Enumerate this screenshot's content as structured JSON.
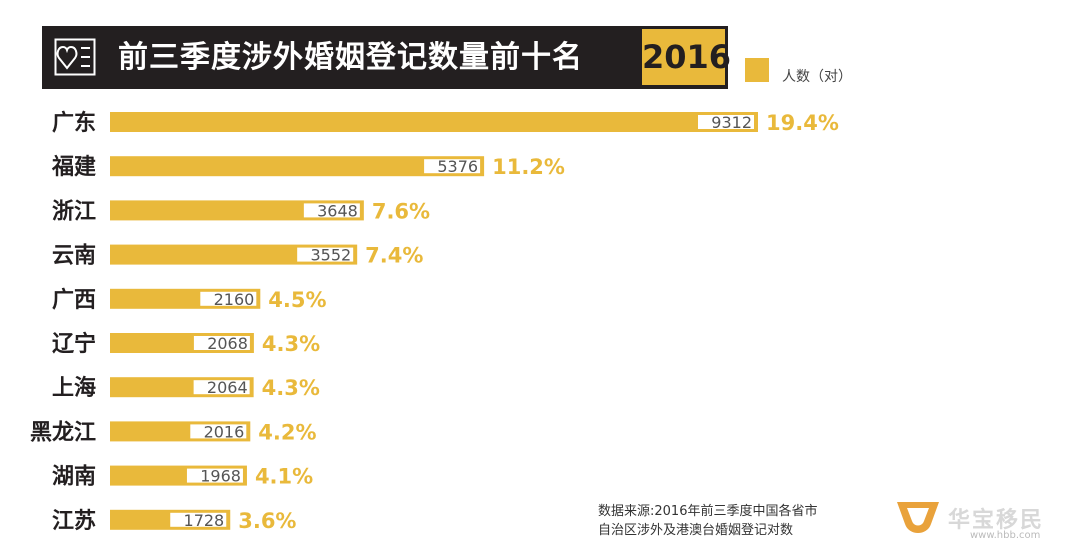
{
  "title": "前三季度涉外婚姻登记数量前十名",
  "year": "2016",
  "legend": {
    "label": "人数（对）",
    "color": "#e9b93b"
  },
  "source_line1": "数据来源:2016年前三季度中国各省市",
  "source_line2": "自治区涉外及港澳台婚姻登记对数",
  "logo_text": "华宝移民",
  "logo_url": "www.hbb.com",
  "colors": {
    "bar": "#e9b93b",
    "percent": "#e9b93b",
    "title_bg": "#231f20"
  },
  "chart_data": {
    "type": "bar",
    "orientation": "horizontal",
    "title": "前三季度涉外婚姻登记数量前十名",
    "categories": [
      "广东",
      "福建",
      "浙江",
      "云南",
      "广西",
      "辽宁",
      "上海",
      "黑龙江",
      "湖南",
      "江苏"
    ],
    "series": [
      {
        "name": "人数（对）",
        "values": [
          9312,
          5376,
          3648,
          3552,
          2160,
          2068,
          2064,
          2016,
          1968,
          1728
        ]
      }
    ],
    "percent_labels": [
      "19.4%",
      "11.2%",
      "7.6%",
      "7.4%",
      "4.5%",
      "4.3%",
      "4.3%",
      "4.2%",
      "4.1%",
      "3.6%"
    ],
    "xlabel": "",
    "ylabel": "",
    "xlim": [
      0,
      9312
    ],
    "grid": false,
    "legend_position": "top-right"
  }
}
